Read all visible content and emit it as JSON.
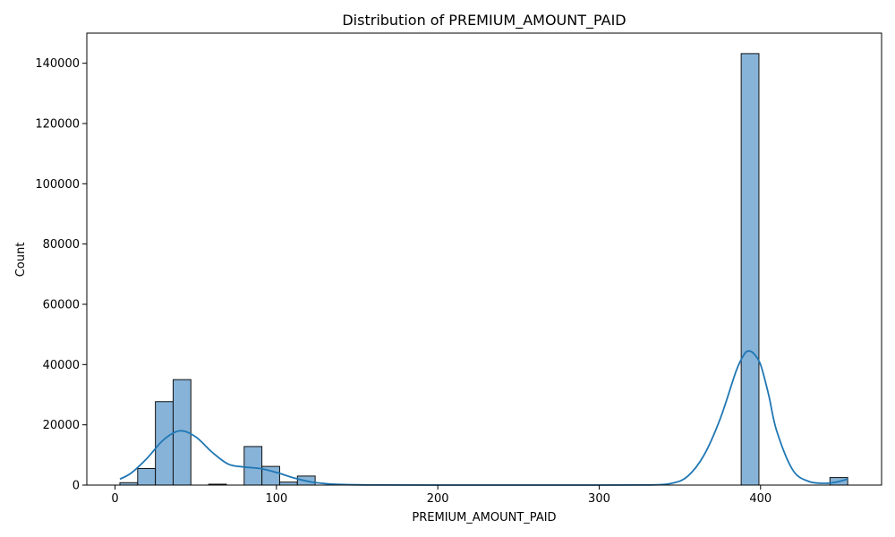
{
  "chart_data": {
    "type": "bar",
    "title": "Distribution of PREMIUM_AMOUNT_PAID",
    "xlabel": "PREMIUM_AMOUNT_PAID",
    "ylabel": "Count",
    "xlim": [
      -17.5,
      475
    ],
    "ylim": [
      0,
      150000
    ],
    "x_ticks": [
      0,
      100,
      200,
      300,
      400
    ],
    "y_ticks": [
      0,
      20000,
      40000,
      60000,
      80000,
      100000,
      120000,
      140000
    ],
    "bin_edges": [
      3,
      14,
      25,
      36,
      47,
      58,
      69,
      80,
      91,
      102,
      113,
      124,
      135,
      146,
      157,
      168,
      179,
      190,
      201,
      212,
      223,
      234,
      245,
      256,
      267,
      278,
      289,
      300,
      311,
      322,
      333,
      344,
      355,
      366,
      377,
      388,
      399,
      410,
      421,
      432,
      443,
      454
    ],
    "counts": [
      800,
      5500,
      27700,
      35000,
      0,
      300,
      0,
      12800,
      6200,
      1000,
      3000,
      0,
      0,
      0,
      0,
      0,
      0,
      0,
      0,
      0,
      0,
      0,
      0,
      0,
      0,
      0,
      0,
      0,
      0,
      0,
      0,
      0,
      0,
      0,
      0,
      143200,
      0,
      0,
      0,
      0,
      2500
    ],
    "kde": {
      "x": [
        3,
        10,
        20,
        30,
        40,
        50,
        60,
        70,
        80,
        90,
        100,
        110,
        120,
        130,
        140,
        160,
        200,
        250,
        300,
        330,
        345,
        355,
        365,
        375,
        385,
        390,
        393,
        396,
        400,
        405,
        410,
        420,
        430,
        440,
        447,
        454
      ],
      "y": [
        2000,
        4000,
        9000,
        15000,
        18000,
        16000,
        11000,
        7000,
        6000,
        5500,
        4200,
        2500,
        1200,
        500,
        200,
        30,
        0,
        0,
        0,
        30,
        600,
        3000,
        10000,
        22000,
        38000,
        43500,
        44500,
        43500,
        40000,
        30000,
        18000,
        5000,
        1200,
        600,
        1000,
        2000
      ]
    },
    "grid": false,
    "legend": "none"
  },
  "colors": {
    "bar_fill": "#87b3d8",
    "bar_edge": "#111111",
    "kde_line": "#1f77b4"
  }
}
